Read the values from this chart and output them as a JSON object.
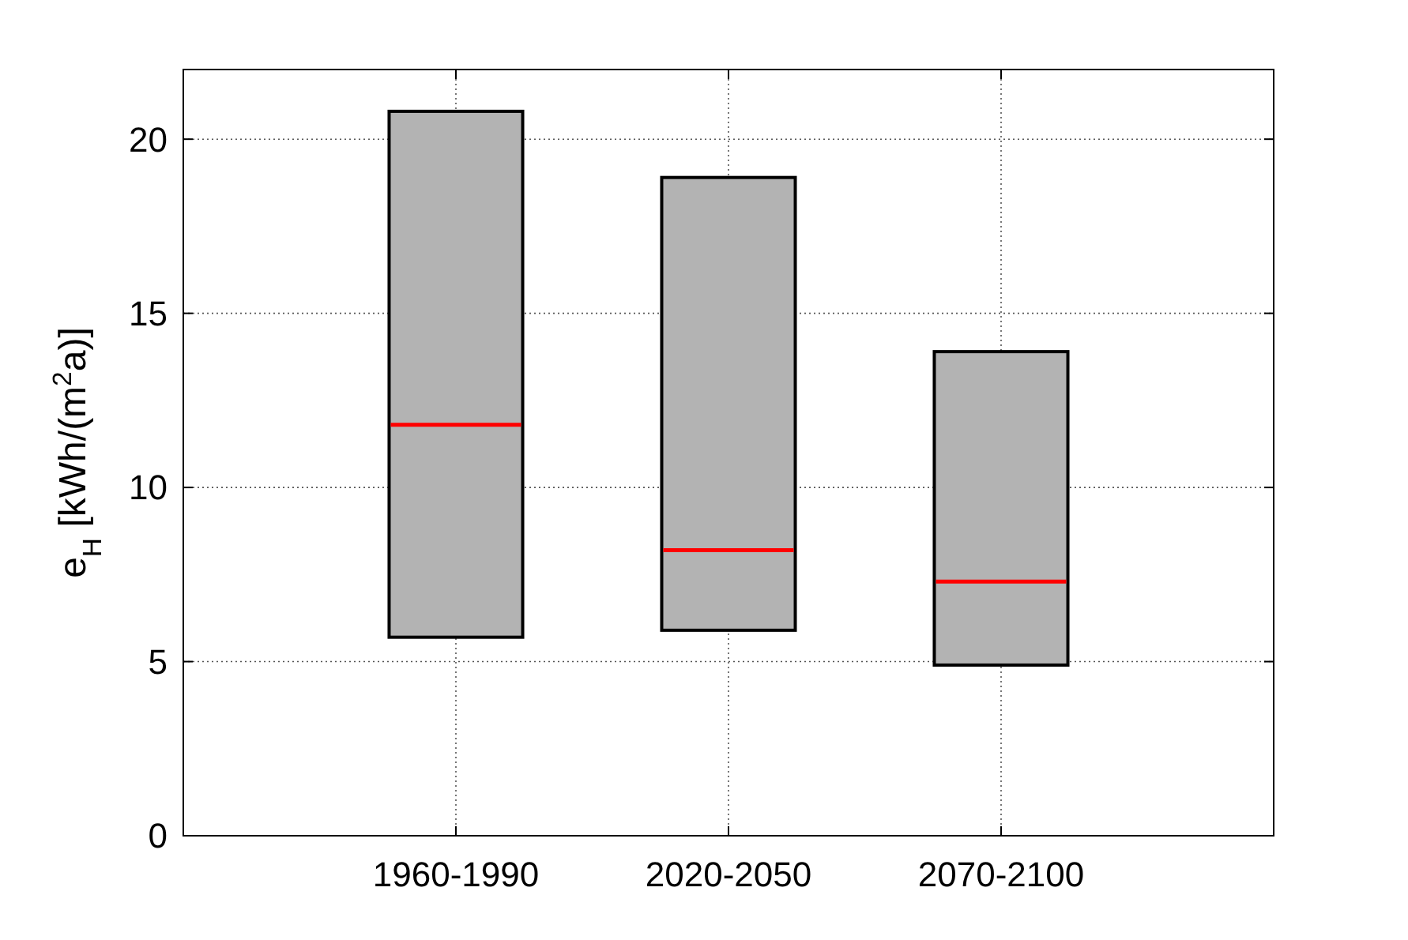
{
  "chart_data": {
    "type": "box",
    "ylabel": "e$_{H}$ [kWh/(m$^{2}$a)]",
    "categories": [
      "1960-1990",
      "2020-2050",
      "2070-2100"
    ],
    "color": "#b3b3b3",
    "boxes": [
      {
        "low": 5.7,
        "q1": 5.7,
        "median": 11.8,
        "q3": 20.8,
        "high": 20.8
      },
      {
        "low": 5.9,
        "q1": 5.9,
        "median": 8.2,
        "q3": 18.9,
        "high": 18.9
      },
      {
        "low": 4.9,
        "q1": 4.9,
        "median": 7.3,
        "q3": 13.9,
        "high": 13.9
      }
    ],
    "ylim": [
      0,
      22
    ],
    "yticks": [
      0,
      5,
      10,
      15,
      20
    ],
    "grid": true
  }
}
